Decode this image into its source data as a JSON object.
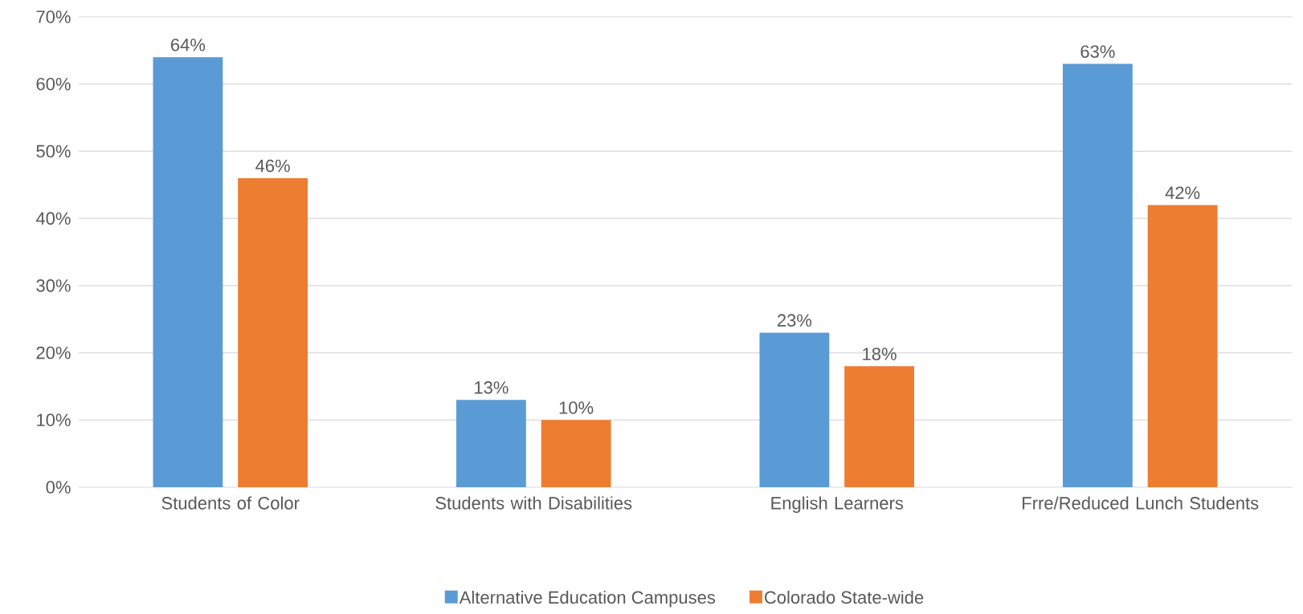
{
  "chart_data": {
    "type": "bar",
    "categories": [
      "Students of Color",
      "Students with Disabilities",
      "English Learners",
      "Frre/Reduced Lunch Students"
    ],
    "series": [
      {
        "name": "Alternative Education Campuses",
        "color": "#5b9bd5",
        "values": [
          64,
          13,
          23,
          63
        ],
        "value_labels": [
          "64%",
          "13%",
          "23%",
          "63%"
        ]
      },
      {
        "name": "Colorado State-wide",
        "color": "#ed7d31",
        "values": [
          46,
          10,
          18,
          42
        ],
        "value_labels": [
          "46%",
          "10%",
          "18%",
          "42%"
        ]
      }
    ],
    "ylim": [
      0,
      70
    ],
    "yticks": [
      {
        "value": 0,
        "label": "0%"
      },
      {
        "value": 10,
        "label": "10%"
      },
      {
        "value": 20,
        "label": "20%"
      },
      {
        "value": 30,
        "label": "30%"
      },
      {
        "value": 40,
        "label": "40%"
      },
      {
        "value": 50,
        "label": "50%"
      },
      {
        "value": 60,
        "label": "60%"
      },
      {
        "value": 70,
        "label": "70%"
      }
    ],
    "grid": "y",
    "legend": "bottom"
  }
}
